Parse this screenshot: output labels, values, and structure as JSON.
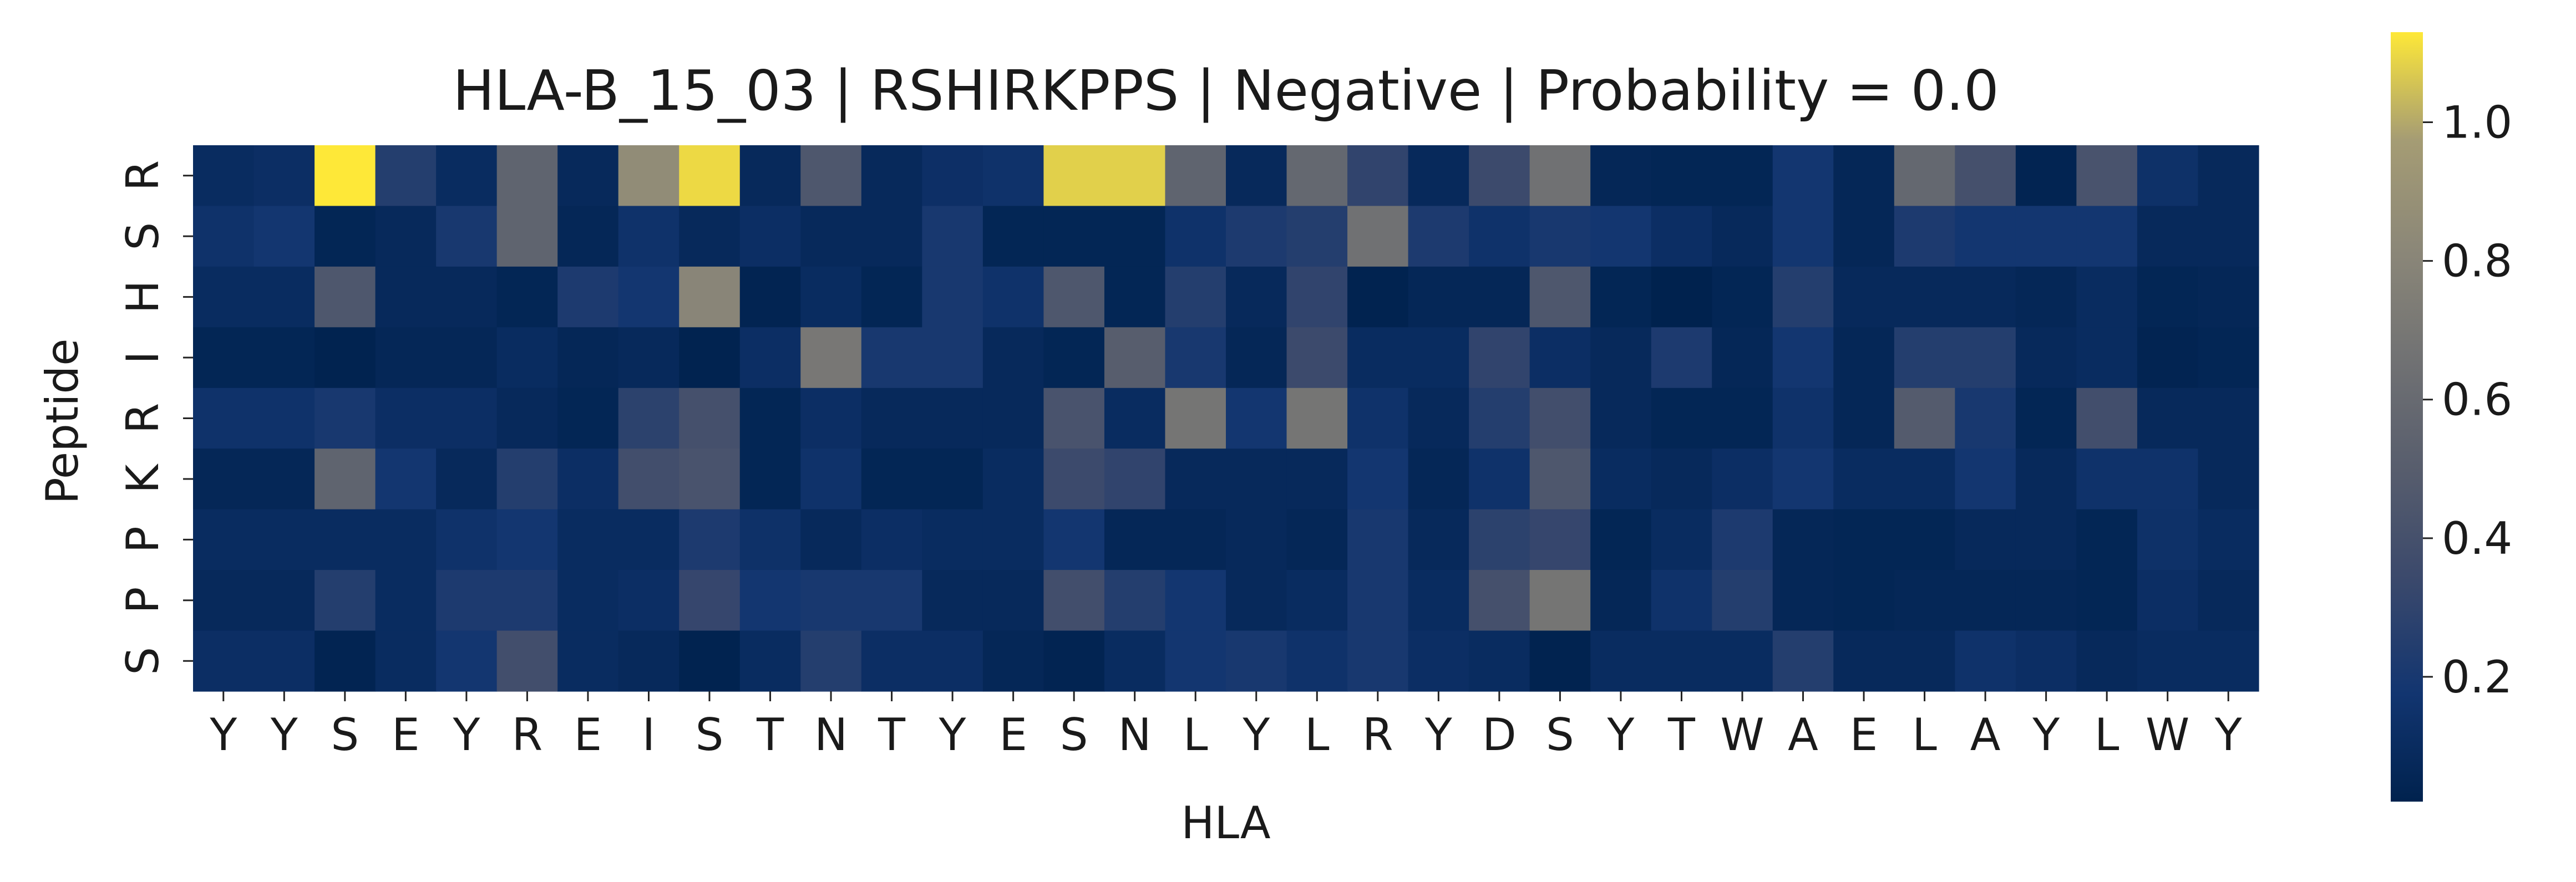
{
  "chart_data": {
    "type": "heatmap",
    "title": "HLA-B_15_03 | RSHIRKPPS | Negative | Probability = 0.0",
    "xlabel": "HLA",
    "ylabel": "Peptide",
    "x_categories": [
      "Y",
      "Y",
      "S",
      "E",
      "Y",
      "R",
      "E",
      "I",
      "S",
      "T",
      "N",
      "T",
      "Y",
      "E",
      "S",
      "N",
      "L",
      "Y",
      "L",
      "R",
      "Y",
      "D",
      "S",
      "Y",
      "T",
      "W",
      "A",
      "E",
      "L",
      "A",
      "Y",
      "L",
      "W",
      "Y"
    ],
    "y_categories": [
      "R",
      "S",
      "H",
      "I",
      "R",
      "K",
      "P",
      "P",
      "S"
    ],
    "colormap": "cividis",
    "colorbar": {
      "vmin": 0.02,
      "vmax": 1.13,
      "ticks": [
        0.2,
        0.4,
        0.6,
        0.8,
        1.0
      ],
      "tick_labels": [
        "0.2",
        "0.4",
        "0.6",
        "0.8",
        "1.0"
      ]
    },
    "values": [
      [
        0.1,
        0.12,
        1.13,
        0.25,
        0.1,
        0.55,
        0.08,
        0.85,
        1.1,
        0.08,
        0.45,
        0.08,
        0.13,
        0.15,
        1.08,
        1.08,
        0.55,
        0.08,
        0.58,
        0.3,
        0.08,
        0.35,
        0.65,
        0.06,
        0.05,
        0.05,
        0.18,
        0.06,
        0.58,
        0.4,
        0.04,
        0.42,
        0.14,
        0.08
      ],
      [
        0.15,
        0.18,
        0.05,
        0.08,
        0.2,
        0.55,
        0.06,
        0.15,
        0.08,
        0.12,
        0.08,
        0.08,
        0.2,
        0.05,
        0.05,
        0.05,
        0.15,
        0.22,
        0.25,
        0.65,
        0.22,
        0.15,
        0.2,
        0.18,
        0.12,
        0.08,
        0.18,
        0.06,
        0.22,
        0.18,
        0.18,
        0.18,
        0.08,
        0.08
      ],
      [
        0.1,
        0.1,
        0.45,
        0.08,
        0.08,
        0.05,
        0.22,
        0.18,
        0.8,
        0.04,
        0.1,
        0.05,
        0.2,
        0.15,
        0.45,
        0.05,
        0.25,
        0.08,
        0.3,
        0.03,
        0.06,
        0.06,
        0.45,
        0.05,
        0.02,
        0.05,
        0.25,
        0.08,
        0.08,
        0.08,
        0.06,
        0.1,
        0.05,
        0.06
      ],
      [
        0.05,
        0.05,
        0.03,
        0.06,
        0.06,
        0.1,
        0.06,
        0.08,
        0.03,
        0.12,
        0.7,
        0.2,
        0.2,
        0.08,
        0.05,
        0.5,
        0.2,
        0.06,
        0.35,
        0.1,
        0.1,
        0.3,
        0.12,
        0.08,
        0.22,
        0.06,
        0.18,
        0.06,
        0.25,
        0.25,
        0.08,
        0.1,
        0.04,
        0.05
      ],
      [
        0.15,
        0.15,
        0.2,
        0.12,
        0.12,
        0.08,
        0.05,
        0.28,
        0.4,
        0.05,
        0.12,
        0.08,
        0.08,
        0.08,
        0.42,
        0.1,
        0.68,
        0.18,
        0.68,
        0.15,
        0.08,
        0.25,
        0.38,
        0.08,
        0.05,
        0.05,
        0.15,
        0.06,
        0.48,
        0.2,
        0.05,
        0.38,
        0.08,
        0.08
      ],
      [
        0.06,
        0.06,
        0.55,
        0.18,
        0.08,
        0.25,
        0.12,
        0.38,
        0.42,
        0.05,
        0.15,
        0.05,
        0.05,
        0.1,
        0.35,
        0.3,
        0.08,
        0.08,
        0.08,
        0.18,
        0.06,
        0.15,
        0.45,
        0.1,
        0.08,
        0.12,
        0.18,
        0.1,
        0.1,
        0.18,
        0.08,
        0.15,
        0.15,
        0.08
      ],
      [
        0.1,
        0.1,
        0.1,
        0.1,
        0.15,
        0.18,
        0.1,
        0.1,
        0.22,
        0.14,
        0.08,
        0.12,
        0.1,
        0.1,
        0.18,
        0.06,
        0.06,
        0.08,
        0.06,
        0.2,
        0.08,
        0.28,
        0.32,
        0.05,
        0.1,
        0.22,
        0.06,
        0.05,
        0.05,
        0.08,
        0.08,
        0.05,
        0.14,
        0.1
      ],
      [
        0.08,
        0.08,
        0.25,
        0.1,
        0.22,
        0.22,
        0.1,
        0.12,
        0.32,
        0.18,
        0.2,
        0.2,
        0.08,
        0.08,
        0.38,
        0.25,
        0.18,
        0.08,
        0.1,
        0.2,
        0.1,
        0.4,
        0.68,
        0.06,
        0.15,
        0.25,
        0.06,
        0.05,
        0.06,
        0.06,
        0.06,
        0.05,
        0.12,
        0.08
      ],
      [
        0.12,
        0.12,
        0.04,
        0.1,
        0.18,
        0.38,
        0.1,
        0.08,
        0.03,
        0.1,
        0.25,
        0.12,
        0.12,
        0.06,
        0.04,
        0.1,
        0.18,
        0.2,
        0.15,
        0.2,
        0.12,
        0.1,
        0.03,
        0.1,
        0.1,
        0.1,
        0.25,
        0.08,
        0.08,
        0.15,
        0.12,
        0.08,
        0.1,
        0.1
      ]
    ]
  }
}
